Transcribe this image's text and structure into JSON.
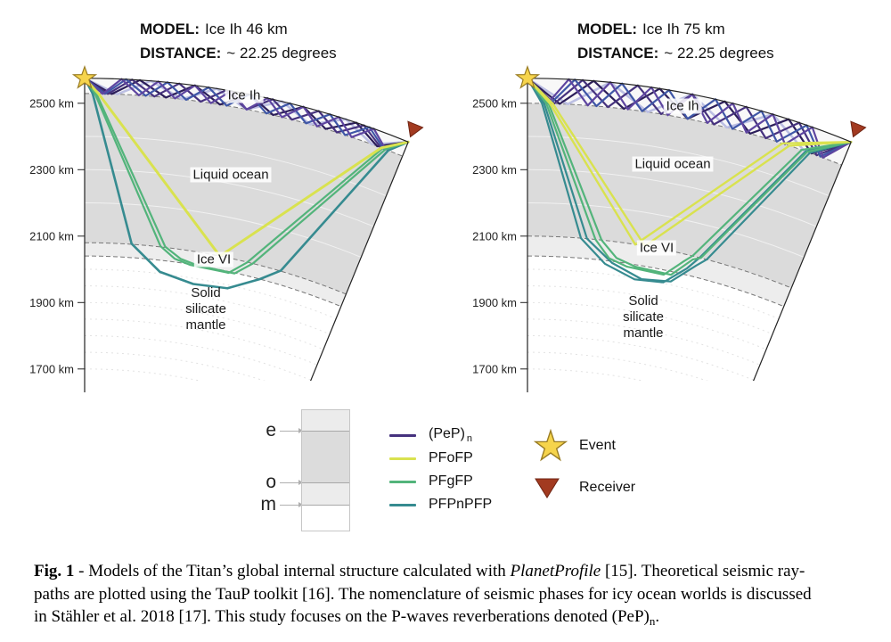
{
  "colors": {
    "background": "#ffffff",
    "pep": "#46327e",
    "pep_light": "#bcbfe3",
    "pfofp": "#d9e24f",
    "pfgfp": "#53b47b",
    "pfpnpfp": "#368b90",
    "fill_ice_ih": "#f8f8f8",
    "fill_ocean": "#dbdbdb",
    "fill_ice_vi": "#ededed",
    "fill_mantle": "#ffffff",
    "boundary_dash": "#777777",
    "outline": "#222222",
    "ocean_faint_arc": "rgba(255,255,255,0.6)",
    "mantle_dotted_arc": "#e2e2e2",
    "event_fill": "#f6d44c",
    "event_stroke": "#9a7d24",
    "receiver_fill": "#a23a20",
    "receiver_stroke": "#6f2413",
    "legend_box": {
      "ice_ih": "#ececec",
      "ocean": "#dcdcdc",
      "ice_vi": "#ececec",
      "mantle": "#ffffff"
    }
  },
  "figure": {
    "panels": [
      {
        "title_label": "MODEL:",
        "title_value": "Ice Ih 46 km",
        "distance_label": "DISTANCE:",
        "distance_value": "~ 22.25 degrees",
        "layer_labels": {
          "ice_ih": "Ice Ih",
          "ocean": "Liquid ocean",
          "ice_vi": "Ice VI",
          "mantle": "Solid silicate mantle"
        },
        "ticks": [
          {
            "km": 2500,
            "label": "2500 km"
          },
          {
            "km": 2300,
            "label": "2300 km"
          },
          {
            "km": 2100,
            "label": "2100 km"
          },
          {
            "km": 1900,
            "label": "1900 km"
          },
          {
            "km": 1700,
            "label": "1700 km"
          }
        ],
        "structure": {
          "surface_km": 2575,
          "ice_shell_thickness_km": 46,
          "ice_base_km": 2529,
          "ocean_floor_km": 2080,
          "ice_vi_base_km": 2040,
          "distance_deg": 22.25
        },
        "rays": {
          "pep": [
            {
              "n": 5,
              "color": "#bcbfe3",
              "w": 2.6
            },
            {
              "n": 6,
              "color": "#2c1e5a",
              "w": 2.2
            },
            {
              "n": 7,
              "color": "#46327e",
              "w": 2.2
            },
            {
              "n": 8,
              "color": "#3f57a7",
              "w": 2.2
            },
            {
              "n": 9,
              "color": "#5e45a0",
              "w": 2.2
            }
          ],
          "deep": [
            {
              "phase": "pfpnpfp",
              "color": "#368b90",
              "w": 2.6,
              "pts": [
                [
                  0,
                  2575
                ],
                [
                  0.55,
                  2529
                ],
                [
                  3.9,
                  2082
                ],
                [
                  6.5,
                  2005
                ],
                [
                  9.5,
                  1983
                ],
                [
                  12.5,
                  1990
                ],
                [
                  15.0,
                  2040
                ],
                [
                  16.5,
                  2082
                ],
                [
                  21.2,
                  2529
                ],
                [
                  22.25,
                  2575
                ]
              ]
            },
            {
              "phase": "pfgfp",
              "color": "#53b47b",
              "w": 2.2,
              "pts": [
                [
                  0,
                  2575
                ],
                [
                  0.7,
                  2529
                ],
                [
                  6.3,
                  2082
                ],
                [
                  7.6,
                  2050
                ],
                [
                  9.0,
                  2038
                ],
                [
                  12.3,
                  2036
                ],
                [
                  13.6,
                  2078
                ],
                [
                  20.8,
                  2529
                ],
                [
                  22.25,
                  2575
                ]
              ]
            },
            {
              "phase": "pfgfp",
              "color": "#53b47b",
              "w": 2.2,
              "pts": [
                [
                  0,
                  2575
                ],
                [
                  0.8,
                  2529
                ],
                [
                  6.7,
                  2082
                ],
                [
                  8.1,
                  2052
                ],
                [
                  9.6,
                  2040
                ],
                [
                  12.8,
                  2038
                ],
                [
                  14.1,
                  2080
                ],
                [
                  21.0,
                  2529
                ],
                [
                  22.25,
                  2575
                ]
              ]
            },
            {
              "phase": "pfofp",
              "color": "#d9e24f",
              "w": 3,
              "pts": [
                [
                  0,
                  2575
                ],
                [
                  0.95,
                  2529
                ],
                [
                  11.3,
                  2080
                ],
                [
                  20.7,
                  2529
                ],
                [
                  22.25,
                  2575
                ]
              ]
            }
          ]
        }
      },
      {
        "title_label": "MODEL:",
        "title_value": "Ice Ih 75 km",
        "distance_label": "DISTANCE:",
        "distance_value": "~ 22.25 degrees",
        "layer_labels": {
          "ice_ih": "Ice Ih",
          "ocean": "Liquid ocean",
          "ice_vi": "Ice VI",
          "mantle": "Solid silicate mantle"
        },
        "ticks": [
          {
            "km": 2500,
            "label": "2500 km"
          },
          {
            "km": 2300,
            "label": "2300 km"
          },
          {
            "km": 2100,
            "label": "2100 km"
          },
          {
            "km": 1900,
            "label": "1900 km"
          },
          {
            "km": 1700,
            "label": "1700 km"
          }
        ],
        "structure": {
          "surface_km": 2575,
          "ice_shell_thickness_km": 75,
          "ice_base_km": 2500,
          "ocean_floor_km": 2100,
          "ice_vi_base_km": 2040,
          "distance_deg": 22.25
        },
        "rays": {
          "pep": [
            {
              "n": 4,
              "color": "#bcbfe3",
              "w": 2.6
            },
            {
              "n": 5,
              "color": "#2c1e5a",
              "w": 2.2
            },
            {
              "n": 6,
              "color": "#46327e",
              "w": 2.2
            },
            {
              "n": 7,
              "color": "#3f57a7",
              "w": 2.2
            },
            {
              "n": 8,
              "color": "#5e45a0",
              "w": 2.2
            }
          ],
          "deep": [
            {
              "phase": "pfpnpfp",
              "color": "#368b90",
              "w": 2.2,
              "pts": [
                [
                  0,
                  2575
                ],
                [
                  1.0,
                  2500
                ],
                [
                  4.4,
                  2100
                ],
                [
                  6.6,
                  2030
                ],
                [
                  9.3,
                  1996
                ],
                [
                  11.8,
                  2003
                ],
                [
                  13.5,
                  2060
                ],
                [
                  14.3,
                  2100
                ],
                [
                  19.6,
                  2500
                ],
                [
                  22.25,
                  2575
                ]
              ]
            },
            {
              "phase": "pfpnpfp",
              "color": "#368b90",
              "w": 2.2,
              "pts": [
                [
                  0,
                  2575
                ],
                [
                  1.15,
                  2500
                ],
                [
                  4.9,
                  2100
                ],
                [
                  7.2,
                  2035
                ],
                [
                  9.9,
                  2000
                ],
                [
                  12.4,
                  2010
                ],
                [
                  14.2,
                  2075
                ],
                [
                  14.9,
                  2100
                ],
                [
                  19.9,
                  2500
                ],
                [
                  22.25,
                  2575
                ]
              ]
            },
            {
              "phase": "pfgfp",
              "color": "#53b47b",
              "w": 2.2,
              "pts": [
                [
                  0,
                  2575
                ],
                [
                  1.3,
                  2500
                ],
                [
                  5.6,
                  2100
                ],
                [
                  6.9,
                  2048
                ],
                [
                  8.5,
                  2030
                ],
                [
                  11.7,
                  2026
                ],
                [
                  13.1,
                  2078
                ],
                [
                  13.7,
                  2100
                ],
                [
                  19.3,
                  2500
                ],
                [
                  22.25,
                  2575
                ]
              ]
            },
            {
              "phase": "pfgfp",
              "color": "#53b47b",
              "w": 2.2,
              "pts": [
                [
                  0,
                  2575
                ],
                [
                  1.45,
                  2500
                ],
                [
                  6.1,
                  2100
                ],
                [
                  7.5,
                  2052
                ],
                [
                  9.2,
                  2034
                ],
                [
                  12.3,
                  2030
                ],
                [
                  13.8,
                  2090
                ],
                [
                  14.4,
                  2100
                ],
                [
                  19.7,
                  2500
                ],
                [
                  22.25,
                  2575
                ]
              ]
            },
            {
              "phase": "pfofp",
              "color": "#d9e24f",
              "w": 2.4,
              "pts": [
                [
                  0,
                  2575
                ],
                [
                  1.55,
                  2500
                ],
                [
                  8.9,
                  2100
                ],
                [
                  17.9,
                  2500
                ],
                [
                  22.25,
                  2575
                ]
              ]
            },
            {
              "phase": "pfofp",
              "color": "#d9e24f",
              "w": 2.4,
              "pts": [
                [
                  0,
                  2575
                ],
                [
                  1.75,
                  2500
                ],
                [
                  9.7,
                  2100
                ],
                [
                  18.4,
                  2500
                ],
                [
                  22.25,
                  2575
                ]
              ]
            }
          ]
        }
      }
    ],
    "legend": {
      "interfaces": [
        {
          "label": "e"
        },
        {
          "label": "o"
        },
        {
          "label": "m"
        }
      ],
      "phases": [
        {
          "label": "(PeP)",
          "sub": "n",
          "color": "#46327e"
        },
        {
          "label": "PFoFP",
          "color": "#d9e24f"
        },
        {
          "label": "PFgFP",
          "color": "#53b47b"
        },
        {
          "label": "PFPnPFP",
          "color": "#368b90"
        }
      ],
      "markers": [
        {
          "label": "Event"
        },
        {
          "label": "Receiver"
        }
      ]
    },
    "caption": {
      "lines": [
        [
          {
            "t": "Fig. 1",
            "b": true
          },
          {
            "t": " - Models of the Titan’s global internal structure calculated with "
          },
          {
            "t": "PlanetProfile",
            "i": true
          },
          {
            "t": " [15]. Theoretical seismic ray-"
          }
        ],
        [
          {
            "t": "paths are plotted using the TauP toolkit [16]. The nomenclature of seismic phases for icy ocean worlds is discussed"
          }
        ],
        [
          {
            "t": "in Stähler et al. 2018 [17]. This study focuses on the P-waves reverberations denoted (PeP)"
          },
          {
            "t": "n",
            "sub": true
          },
          {
            "t": "."
          }
        ]
      ]
    }
  }
}
